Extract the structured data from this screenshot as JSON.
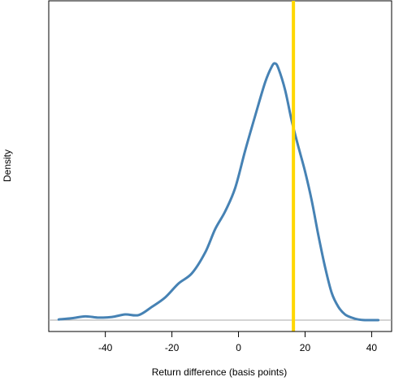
{
  "chart_data": {
    "type": "line",
    "title": "",
    "xlabel": "Return difference (basis points)",
    "ylabel": "Density",
    "xlim": [
      -57,
      46
    ],
    "ylim": [
      -0.0018,
      0.0505
    ],
    "x_ticks": [
      -40,
      -20,
      0,
      20,
      40
    ],
    "y_ticks_shown": false,
    "grid": false,
    "legend": "none",
    "baseline": {
      "y": 0,
      "color": "#aaaaaa"
    },
    "reference_line": {
      "x": 16.5,
      "color": "#ffd700"
    },
    "series": [
      {
        "color": "#4682b4",
        "x": [
          -54,
          -50,
          -46,
          -42,
          -38,
          -34,
          -30,
          -26,
          -22,
          -18,
          -14,
          -10,
          -7,
          -4,
          -1,
          2,
          5,
          8,
          10,
          11,
          12,
          14,
          16,
          18,
          20,
          22,
          24,
          26,
          28,
          30,
          32,
          34,
          36,
          38,
          42
        ],
        "y": [
          0.0001,
          0.0003,
          0.0006,
          0.0004,
          0.0005,
          0.0009,
          0.0008,
          0.0021,
          0.0036,
          0.0058,
          0.0074,
          0.0107,
          0.0144,
          0.0172,
          0.0209,
          0.0268,
          0.0323,
          0.0376,
          0.0401,
          0.0406,
          0.0398,
          0.0364,
          0.0315,
          0.0274,
          0.0235,
          0.0189,
          0.0134,
          0.0084,
          0.0043,
          0.0021,
          0.0009,
          0.0004,
          0.0001,
          0.0,
          0.0
        ]
      }
    ]
  }
}
